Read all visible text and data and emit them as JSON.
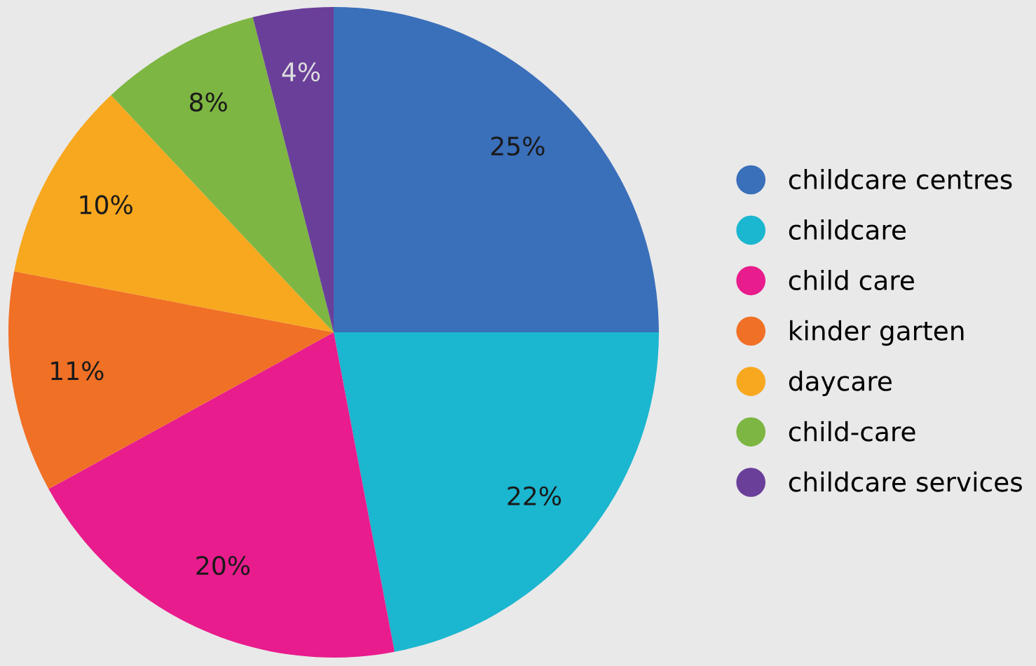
{
  "chart_data": {
    "type": "pie",
    "categories": [
      "childcare centres",
      "childcare",
      "child care",
      "kinder garten",
      "daycare",
      "child-care",
      "childcare services"
    ],
    "values": [
      25,
      22,
      20,
      11,
      10,
      8,
      4
    ],
    "value_labels": [
      "25%",
      "22%",
      "20%",
      "11%",
      "10%",
      "8%",
      "4%"
    ],
    "colors": [
      "#3a6fba",
      "#1bb6cf",
      "#e81c8c",
      "#f07026",
      "#f8a81f",
      "#7db642",
      "#6a3f9a"
    ],
    "legend": "right"
  }
}
